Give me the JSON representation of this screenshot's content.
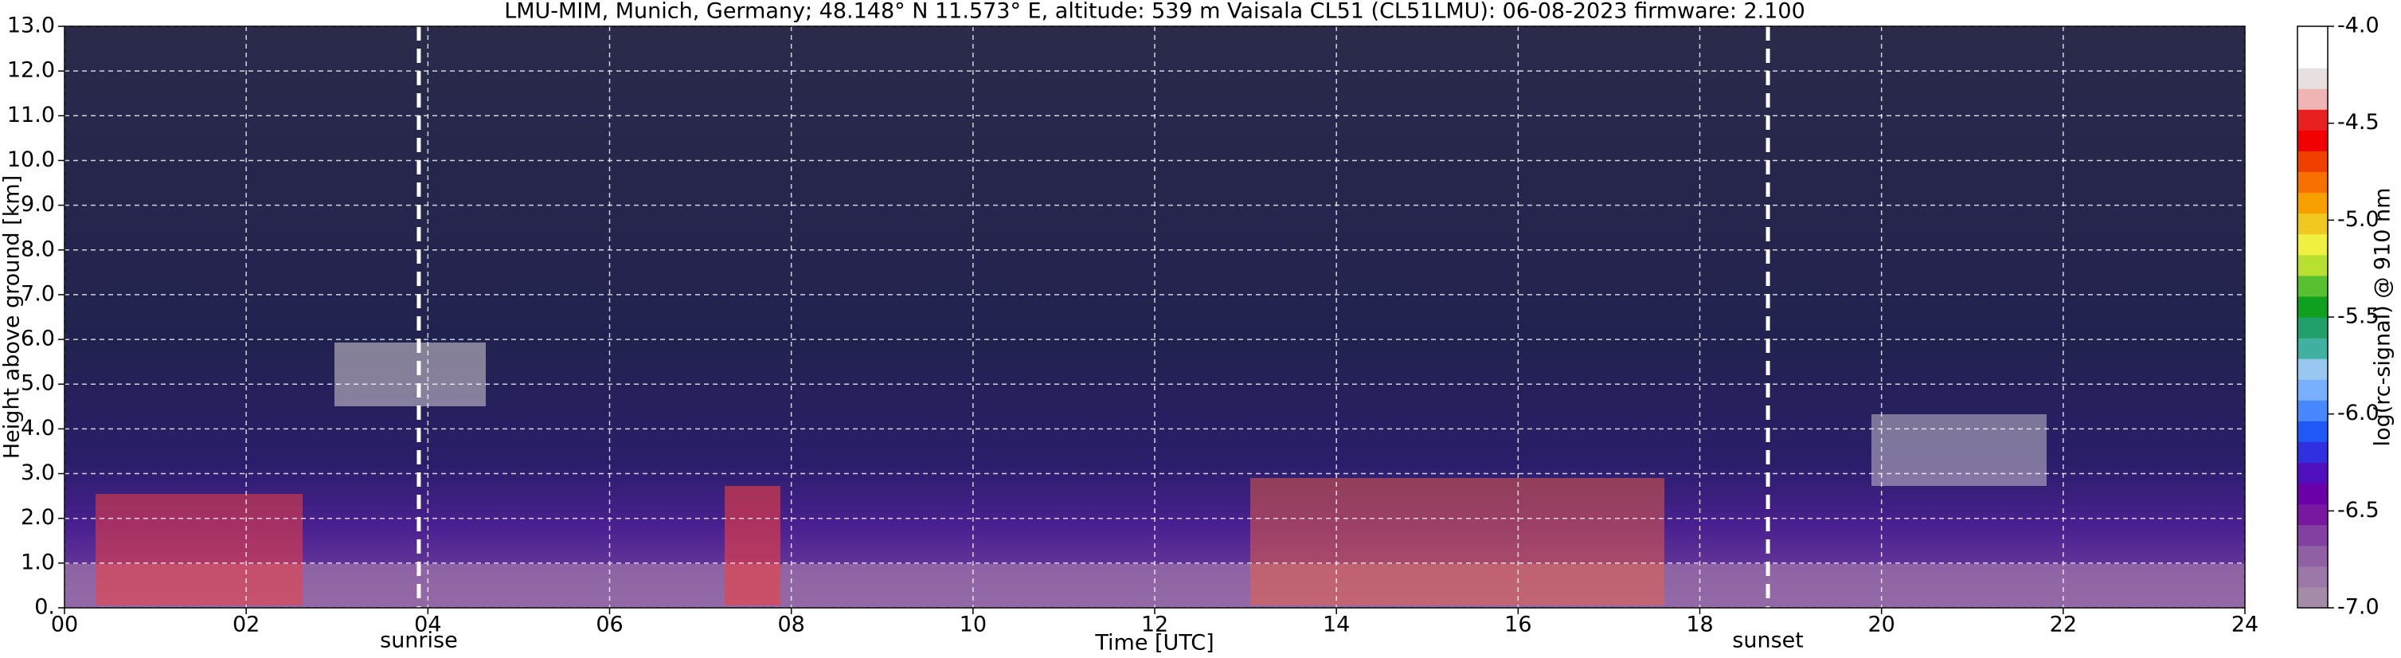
{
  "chart_data": {
    "type": "heatmap",
    "title": "LMU-MIM, Munich, Germany; 48.148° N 11.573° E, altitude: 539 m    Vaisala CL51 (CL51LMU): 06-08-2023    firmware: 2.100",
    "x_label": "Time [UTC]",
    "y_label": "Height above ground [km]",
    "colorbar_label": "log(rc-signal) @ 910 nm",
    "xlim": [
      0,
      24
    ],
    "xticks": [
      {
        "value": 0,
        "label": "00"
      },
      {
        "value": 2,
        "label": "02"
      },
      {
        "value": 4,
        "label": "04"
      },
      {
        "value": 6,
        "label": "06"
      },
      {
        "value": 8,
        "label": "08"
      },
      {
        "value": 10,
        "label": "10"
      },
      {
        "value": 12,
        "label": "12"
      },
      {
        "value": 14,
        "label": "14"
      },
      {
        "value": 16,
        "label": "16"
      },
      {
        "value": 18,
        "label": "18"
      },
      {
        "value": 20,
        "label": "20"
      },
      {
        "value": 22,
        "label": "22"
      },
      {
        "value": 24,
        "label": "24"
      }
    ],
    "ylim": [
      0,
      13
    ],
    "yticks": [
      {
        "value": 0,
        "label": "0."
      },
      {
        "value": 1,
        "label": "1.0"
      },
      {
        "value": 2,
        "label": "2.0"
      },
      {
        "value": 3,
        "label": "3.0"
      },
      {
        "value": 4,
        "label": "4.0"
      },
      {
        "value": 5,
        "label": "5.0"
      },
      {
        "value": 6,
        "label": "6.0"
      },
      {
        "value": 7,
        "label": "7.0"
      },
      {
        "value": 8,
        "label": "8.0"
      },
      {
        "value": 9,
        "label": "9.0"
      },
      {
        "value": 10,
        "label": "10.0"
      },
      {
        "value": 11,
        "label": "11.0"
      },
      {
        "value": 12,
        "label": "12.0"
      },
      {
        "value": 13,
        "label": "13.0"
      }
    ],
    "clim": [
      -7,
      -4
    ],
    "cticks": [
      {
        "value": -4,
        "label": "-4.0"
      },
      {
        "value": -4.5,
        "label": "-4.5"
      },
      {
        "value": -5,
        "label": "-5.0"
      },
      {
        "value": -5.5,
        "label": "-5.5"
      },
      {
        "value": -6,
        "label": "-6.0"
      },
      {
        "value": -6.5,
        "label": "-6.5"
      },
      {
        "value": -7,
        "label": "-7.0"
      }
    ],
    "colormap": [
      "#a48ca8",
      "#9c78a8",
      "#9060a4",
      "#8440a0",
      "#7818a0",
      "#6a00a8",
      "#5010c0",
      "#3030e0",
      "#2058f8",
      "#4888ff",
      "#78b0ff",
      "#98c8f0",
      "#40b0a0",
      "#20a068",
      "#10a020",
      "#58c030",
      "#b8e030",
      "#f0f040",
      "#f0c820",
      "#f8a000",
      "#f87000",
      "#f04000",
      "#f00000",
      "#e82020",
      "#f0b4b4",
      "#e8e0e0",
      "#ffffff",
      "#ffffff"
    ],
    "grid": true,
    "annotations": [
      {
        "x": 3.9,
        "text": "sunrise"
      },
      {
        "x": 18.75,
        "text": "sunset"
      }
    ]
  }
}
